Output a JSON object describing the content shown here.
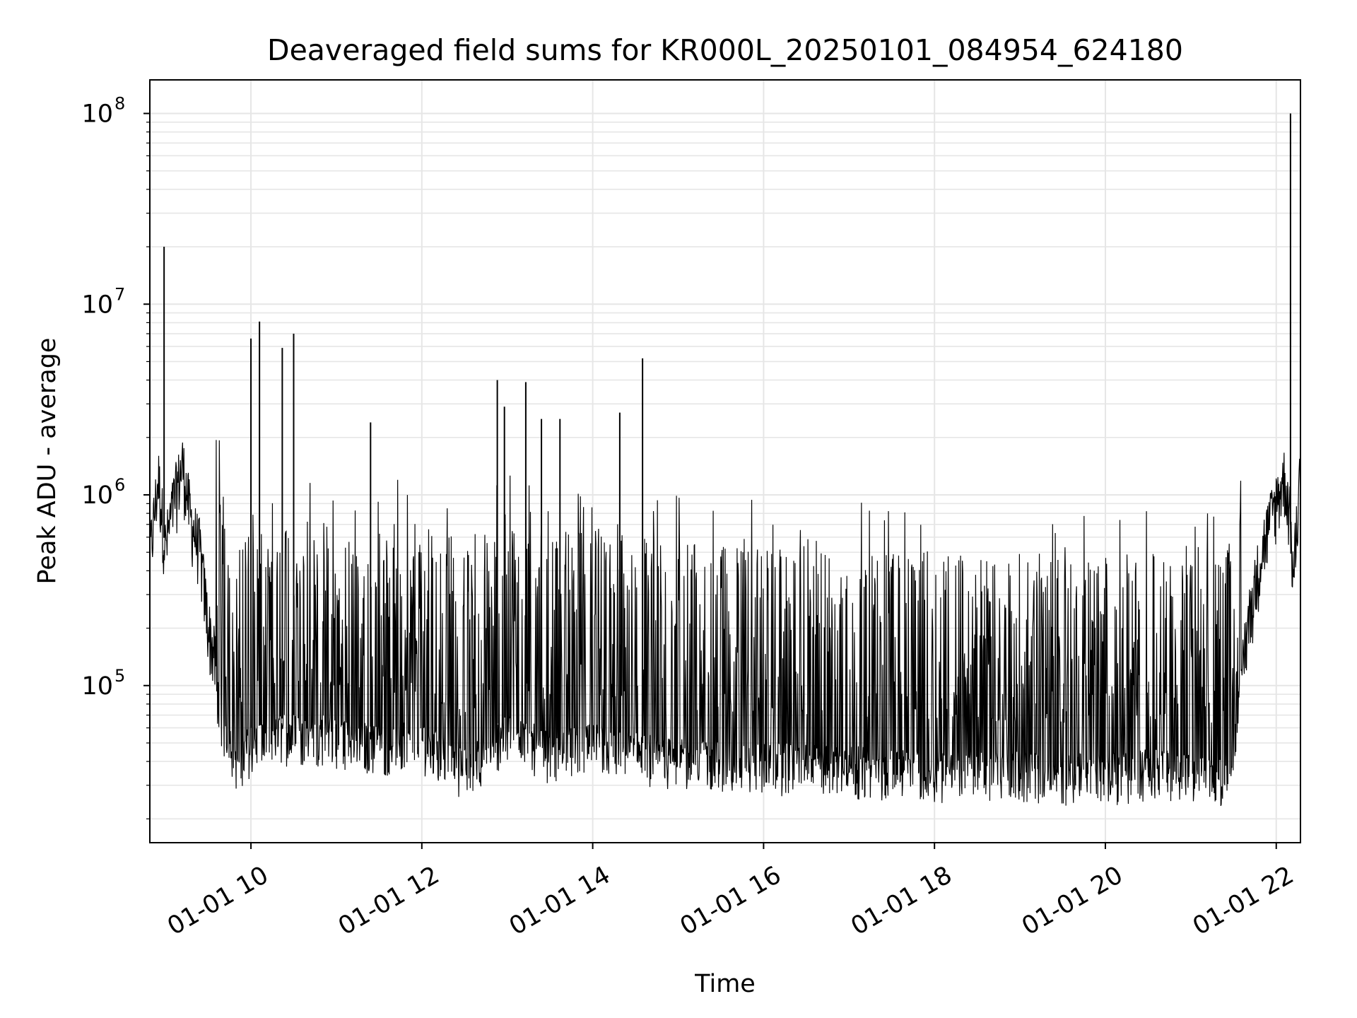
{
  "chart_data": {
    "type": "line",
    "title": "Deaveraged field sums for KR000L_20250101_084954_624180",
    "xlabel": "Time",
    "ylabel": "Peak ADU - average",
    "x_scale": "time",
    "y_scale": "log",
    "xlim": [
      "2025-01-01 08:49",
      "2025-01-01 22:17"
    ],
    "ylim": [
      15000,
      150000000
    ],
    "grid": true,
    "line_color": "#000000",
    "grid_color": "#e6e6e6",
    "x_ticks": [
      {
        "x": "2025-01-01 10:00",
        "label": "01-01 10"
      },
      {
        "x": "2025-01-01 12:00",
        "label": "01-01 12"
      },
      {
        "x": "2025-01-01 14:00",
        "label": "01-01 14"
      },
      {
        "x": "2025-01-01 16:00",
        "label": "01-01 16"
      },
      {
        "x": "2025-01-01 18:00",
        "label": "01-01 18"
      },
      {
        "x": "2025-01-01 20:00",
        "label": "01-01 20"
      },
      {
        "x": "2025-01-01 22:00",
        "label": "01-01 22"
      }
    ],
    "y_ticks": [
      {
        "y": 100000,
        "base": "10",
        "exp": "5"
      },
      {
        "y": 1000000,
        "base": "10",
        "exp": "6"
      },
      {
        "y": 10000000,
        "base": "10",
        "exp": "7"
      },
      {
        "y": 100000000,
        "base": "10",
        "exp": "8"
      }
    ],
    "series": [
      {
        "points": [
          {
            "x": "2025-01-01 08:49",
            "y": 450000
          },
          {
            "x": "2025-01-01 08:55",
            "y": 1200000
          },
          {
            "x": "2025-01-01 09:00",
            "y": 500000
          },
          {
            "x": "2025-01-01 09:06",
            "y": 900000
          },
          {
            "x": "2025-01-01 09:12",
            "y": 1400000
          },
          {
            "x": "2025-01-01 09:18",
            "y": 700000
          },
          {
            "x": "2025-01-01 09:24",
            "y": 500000
          },
          {
            "x": "2025-01-01 09:30",
            "y": 200000
          },
          {
            "x": "2025-01-01 09:40",
            "y": 80000
          },
          {
            "x": "2025-01-01 09:50",
            "y": 50000
          },
          {
            "x": "2025-01-01 10:00",
            "y": 60000
          },
          {
            "x": "2025-01-01 10:30",
            "y": 70000
          },
          {
            "x": "2025-01-01 11:00",
            "y": 65000
          },
          {
            "x": "2025-01-01 11:30",
            "y": 60000
          },
          {
            "x": "2025-01-01 12:00",
            "y": 62000
          },
          {
            "x": "2025-01-01 12:30",
            "y": 45000
          },
          {
            "x": "2025-01-01 13:00",
            "y": 70000
          },
          {
            "x": "2025-01-01 13:30",
            "y": 55000
          },
          {
            "x": "2025-01-01 14:00",
            "y": 60000
          },
          {
            "x": "2025-01-01 15:00",
            "y": 50000
          },
          {
            "x": "2025-01-01 16:00",
            "y": 48000
          },
          {
            "x": "2025-01-01 17:00",
            "y": 46000
          },
          {
            "x": "2025-01-01 18:00",
            "y": 44000
          },
          {
            "x": "2025-01-01 19:00",
            "y": 43000
          },
          {
            "x": "2025-01-01 20:00",
            "y": 42000
          },
          {
            "x": "2025-01-01 20:30",
            "y": 45000
          },
          {
            "x": "2025-01-01 21:00",
            "y": 42000
          },
          {
            "x": "2025-01-01 21:20",
            "y": 40000
          },
          {
            "x": "2025-01-01 21:30",
            "y": 60000
          },
          {
            "x": "2025-01-01 21:40",
            "y": 200000
          },
          {
            "x": "2025-01-01 21:50",
            "y": 500000
          },
          {
            "x": "2025-01-01 22:00",
            "y": 900000
          },
          {
            "x": "2025-01-01 22:06",
            "y": 1200000
          },
          {
            "x": "2025-01-01 22:10",
            "y": 700000
          },
          {
            "x": "2025-01-01 22:12",
            "y": 350000
          },
          {
            "x": "2025-01-01 22:17",
            "y": 1300000
          }
        ],
        "spikes": [
          {
            "x": "2025-01-01 08:59",
            "y": 20000000
          },
          {
            "x": "2025-01-01 10:00",
            "y": 6600000
          },
          {
            "x": "2025-01-01 10:06",
            "y": 8100000
          },
          {
            "x": "2025-01-01 10:22",
            "y": 5900000
          },
          {
            "x": "2025-01-01 10:30",
            "y": 7000000
          },
          {
            "x": "2025-01-01 11:24",
            "y": 2400000
          },
          {
            "x": "2025-01-01 12:53",
            "y": 4000000
          },
          {
            "x": "2025-01-01 12:58",
            "y": 2900000
          },
          {
            "x": "2025-01-01 13:13",
            "y": 3900000
          },
          {
            "x": "2025-01-01 13:24",
            "y": 2500000
          },
          {
            "x": "2025-01-01 13:37",
            "y": 2500000
          },
          {
            "x": "2025-01-01 14:19",
            "y": 2700000
          },
          {
            "x": "2025-01-01 14:35",
            "y": 5200000
          },
          {
            "x": "2025-01-01 22:10",
            "y": 100000000
          }
        ]
      }
    ]
  }
}
